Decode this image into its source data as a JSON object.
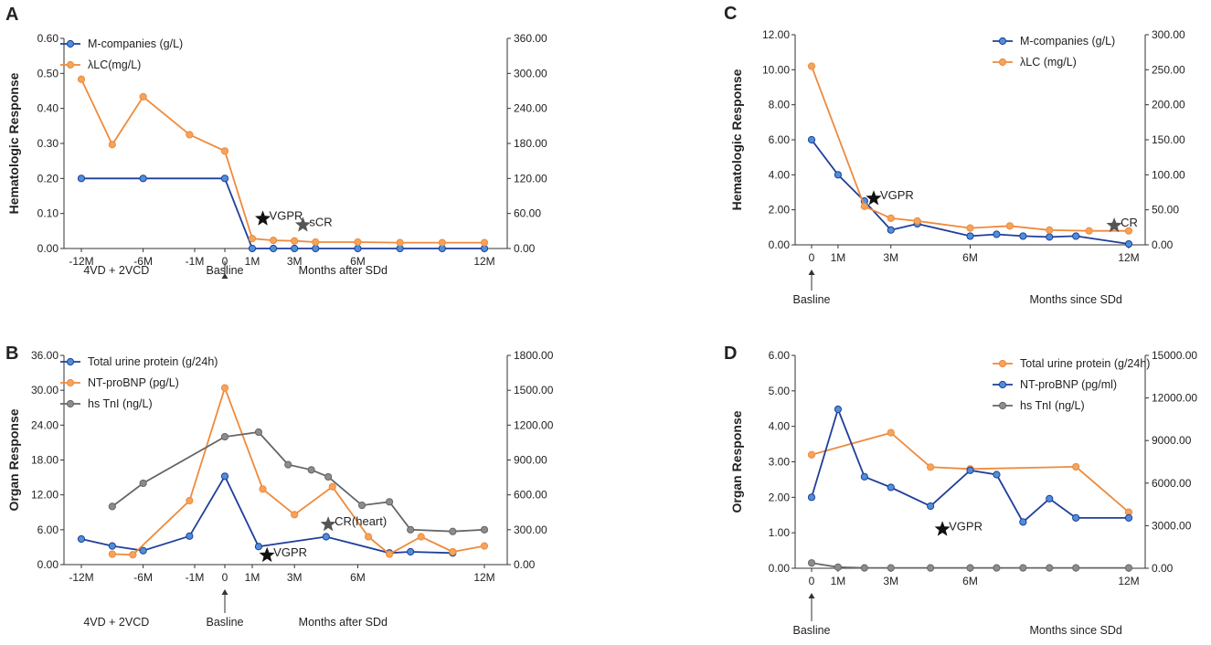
{
  "colors": {
    "blue": "#1f3f9a",
    "blue_fill": "#4f8fd8",
    "orange": "#ee8a3c",
    "orange_fill": "#f5a45a",
    "gray": "#666666",
    "gray_fill": "#8c8c8c",
    "axis": "#333333",
    "star_black": "#111111",
    "star_gray": "#555555"
  },
  "chart_data": [
    {
      "panel": "A",
      "type": "line",
      "ylabel": "Hematologic Response",
      "ylim_left": [
        0,
        0.6
      ],
      "ylim_right": [
        0,
        360
      ],
      "yticks_left": [
        "0.00",
        "0.10",
        "0.20",
        "0.30",
        "0.40",
        "0.50",
        "0.60"
      ],
      "yticks_right": [
        "0.00",
        "60.00",
        "120.00",
        "180.00",
        "240.00",
        "300.00",
        "360.00"
      ],
      "xlim": [
        -12,
        12
      ],
      "xticks": [
        {
          "x": -12,
          "label": "-12M"
        },
        {
          "x": -6,
          "label": "-6M"
        },
        {
          "x": -1,
          "label": "-1M"
        },
        {
          "x": 0,
          "label": "0"
        },
        {
          "x": 1,
          "label": "1M"
        },
        {
          "x": 3,
          "label": "3M"
        },
        {
          "x": 6,
          "label": "6M"
        },
        {
          "x": 12,
          "label": "12M"
        }
      ],
      "series": [
        {
          "name": "M-companies (g/L)",
          "color": "blue",
          "axis": "left",
          "points": [
            [
              -12,
              0.2
            ],
            [
              -6,
              0.2
            ],
            [
              0,
              0.2
            ],
            [
              1,
              0
            ],
            [
              2,
              0
            ],
            [
              3,
              0
            ],
            [
              4,
              0
            ],
            [
              6,
              0
            ],
            [
              8,
              0
            ],
            [
              10,
              0
            ],
            [
              12,
              0
            ]
          ]
        },
        {
          "name": "λLC(mg/L)",
          "color": "orange",
          "axis": "right",
          "points": [
            [
              -12,
              290
            ],
            [
              -9,
              178
            ],
            [
              -6,
              260
            ],
            [
              -1.5,
              195
            ],
            [
              0,
              167
            ],
            [
              1,
              17
            ],
            [
              2,
              14
            ],
            [
              3,
              13
            ],
            [
              4,
              11
            ],
            [
              6,
              11
            ],
            [
              8,
              10
            ],
            [
              10,
              10
            ],
            [
              12,
              10
            ]
          ]
        }
      ],
      "annotations": [
        {
          "text": "VGPR",
          "x": 1.5,
          "y": 0.085,
          "star": "black"
        },
        {
          "text": "sCR",
          "x": 3.4,
          "y": 0.067,
          "star": "gray"
        }
      ],
      "sublabels": [
        {
          "text": "4VD + 2VCD",
          "x": -8.6
        },
        {
          "text": "Basline",
          "x": 0,
          "arrow": true
        },
        {
          "text": "Months after SDd",
          "x": 5.3
        }
      ]
    },
    {
      "panel": "B",
      "type": "line",
      "ylabel": "Organ Response",
      "ylim_left": [
        0,
        36
      ],
      "ylim_right": [
        0,
        1800
      ],
      "yticks_left": [
        "0.00",
        "6.00",
        "12.00",
        "18.00",
        "24.00",
        "30.00",
        "36.00"
      ],
      "yticks_right": [
        "0.00",
        "300.00",
        "600.00",
        "900.00",
        "1200.00",
        "1500.00",
        "1800.00"
      ],
      "xlim": [
        -12,
        12
      ],
      "xticks": [
        {
          "x": -12,
          "label": "-12M"
        },
        {
          "x": -6,
          "label": "-6M"
        },
        {
          "x": -1,
          "label": "-1M"
        },
        {
          "x": 0,
          "label": "0"
        },
        {
          "x": 1,
          "label": "1M"
        },
        {
          "x": 3,
          "label": "3M"
        },
        {
          "x": 6,
          "label": "6M"
        },
        {
          "x": 12,
          "label": "12M"
        }
      ],
      "series": [
        {
          "name": "Total urine protein (g/24h)",
          "color": "blue",
          "axis": "left",
          "points": [
            [
              -12,
              4.4
            ],
            [
              -9,
              3.2
            ],
            [
              -6,
              2.4
            ],
            [
              -1.5,
              4.9
            ],
            [
              0,
              15.2
            ],
            [
              1.3,
              3.1
            ],
            [
              4.5,
              4.8
            ],
            [
              7.5,
              2.0
            ],
            [
              8.5,
              2.2
            ],
            [
              10.5,
              2.0
            ]
          ]
        },
        {
          "name": "NT-proBNP (pg/L)",
          "color": "orange",
          "axis": "right",
          "points": [
            [
              -9,
              90
            ],
            [
              -7,
              85
            ],
            [
              -1.5,
              550
            ],
            [
              0,
              1520
            ],
            [
              1.5,
              650
            ],
            [
              3,
              430
            ],
            [
              4.8,
              670
            ],
            [
              6.5,
              240
            ],
            [
              7.5,
              90
            ],
            [
              9,
              240
            ],
            [
              10.5,
              110
            ],
            [
              12,
              160
            ]
          ]
        },
        {
          "name": "hs TnI  (ng/L)",
          "color": "gray",
          "axis": "left",
          "points": [
            [
              -9,
              10
            ],
            [
              -6,
              14
            ],
            [
              0,
              22
            ],
            [
              1.3,
              22.8
            ],
            [
              2.7,
              17.2
            ],
            [
              3.8,
              16.3
            ],
            [
              4.6,
              15.1
            ],
            [
              6.2,
              10.2
            ],
            [
              7.5,
              10.8
            ],
            [
              8.5,
              6.0
            ],
            [
              10.5,
              5.7
            ],
            [
              12,
              6.0
            ]
          ]
        }
      ],
      "annotations": [
        {
          "text": "VGPR",
          "x": 1.7,
          "y": 1.6,
          "star": "black"
        },
        {
          "text": "CR(heart)",
          "x": 4.6,
          "y": 6.9,
          "star": "gray"
        }
      ],
      "sublabels": [
        {
          "text": "4VD + 2VCD",
          "x": -8.6
        },
        {
          "text": "Basline",
          "x": 0,
          "arrow": true
        },
        {
          "text": "Months after SDd",
          "x": 5.3
        }
      ]
    },
    {
      "panel": "C",
      "type": "line",
      "ylabel": "Hematologic Response",
      "ylim_left": [
        0,
        12
      ],
      "ylim_right": [
        0,
        300
      ],
      "yticks_left": [
        "0.00",
        "2.00",
        "4.00",
        "6.00",
        "8.00",
        "10.00",
        "12.00"
      ],
      "yticks_right": [
        "0.00",
        "50.00",
        "100.00",
        "150.00",
        "200.00",
        "250.00",
        "300.00"
      ],
      "xlim": [
        0,
        12
      ],
      "xticks": [
        {
          "x": 0,
          "label": "0"
        },
        {
          "x": 1,
          "label": "1M"
        },
        {
          "x": 3,
          "label": "3M"
        },
        {
          "x": 6,
          "label": "6M"
        },
        {
          "x": 12,
          "label": "12M"
        }
      ],
      "series": [
        {
          "name": "M-companies  (g/L)",
          "color": "blue",
          "axis": "left",
          "points": [
            [
              0,
              6.0
            ],
            [
              1,
              4.0
            ],
            [
              2,
              2.5
            ],
            [
              3,
              0.85
            ],
            [
              4,
              1.2
            ],
            [
              6,
              0.5
            ],
            [
              7,
              0.6
            ],
            [
              8,
              0.5
            ],
            [
              9,
              0.45
            ],
            [
              10,
              0.5
            ],
            [
              12,
              0.05
            ]
          ]
        },
        {
          "name": "λLC (mg/L)",
          "color": "orange",
          "axis": "right",
          "points": [
            [
              0,
              255
            ],
            [
              2,
              55
            ],
            [
              3,
              38
            ],
            [
              4,
              34
            ],
            [
              6,
              24
            ],
            [
              7.5,
              27
            ],
            [
              9,
              21
            ],
            [
              10.5,
              20
            ],
            [
              12,
              20
            ]
          ]
        }
      ],
      "annotations": [
        {
          "text": "VGPR",
          "x": 2.35,
          "y": 2.65,
          "star": "black"
        },
        {
          "text": "CR",
          "x": 11.45,
          "y": 1.1,
          "star": "gray"
        }
      ],
      "sublabels": [
        {
          "text": "Basline",
          "x": 0,
          "arrow": true
        },
        {
          "text": "Months since SDd",
          "x": 10.0
        }
      ]
    },
    {
      "panel": "D",
      "type": "line",
      "ylabel": "Organ Response",
      "ylim_left": [
        0,
        6
      ],
      "ylim_right": [
        0,
        15000
      ],
      "yticks_left": [
        "0.00",
        "1.00",
        "2.00",
        "3.00",
        "4.00",
        "5.00",
        "6.00"
      ],
      "yticks_right": [
        "0.00",
        "3000.00",
        "6000.00",
        "9000.00",
        "12000.00",
        "15000.00"
      ],
      "xlim": [
        0,
        12
      ],
      "xticks": [
        {
          "x": 0,
          "label": "0"
        },
        {
          "x": 1,
          "label": "1M"
        },
        {
          "x": 3,
          "label": "3M"
        },
        {
          "x": 6,
          "label": "6M"
        },
        {
          "x": 12,
          "label": "12M"
        }
      ],
      "series": [
        {
          "name": "Total urine protein (g/24h)",
          "color": "orange",
          "axis": "left",
          "points": [
            [
              0,
              3.2
            ],
            [
              3,
              3.82
            ],
            [
              4.5,
              2.85
            ],
            [
              6,
              2.8
            ],
            [
              10,
              2.86
            ],
            [
              12,
              1.58
            ]
          ]
        },
        {
          "name": "NT-proBNP  (pg/ml)",
          "color": "blue",
          "axis": "right",
          "points": [
            [
              0,
              5000
            ],
            [
              1,
              11200
            ],
            [
              2,
              6450
            ],
            [
              3,
              5700
            ],
            [
              4.5,
              4380
            ],
            [
              6,
              6900
            ],
            [
              7,
              6600
            ],
            [
              8,
              3260
            ],
            [
              9,
              4900
            ],
            [
              10,
              3550
            ],
            [
              12,
              3550
            ]
          ]
        },
        {
          "name": "hs TnI (ng/L)",
          "color": "gray",
          "axis": "left",
          "points": [
            [
              0,
              0.15
            ],
            [
              1,
              0.03
            ],
            [
              2,
              0.01
            ],
            [
              3,
              0.01
            ],
            [
              4.5,
              0.01
            ],
            [
              6,
              0.01
            ],
            [
              7,
              0.01
            ],
            [
              8,
              0.01
            ],
            [
              9,
              0.01
            ],
            [
              10,
              0.01
            ],
            [
              12,
              0.01
            ]
          ]
        }
      ],
      "annotations": [
        {
          "text": "VGPR",
          "x": 4.95,
          "y": 1.1,
          "star": "black"
        }
      ],
      "sublabels": [
        {
          "text": "Basline",
          "x": 0,
          "arrow": true
        },
        {
          "text": "Months since SDd",
          "x": 10.0
        }
      ]
    }
  ]
}
